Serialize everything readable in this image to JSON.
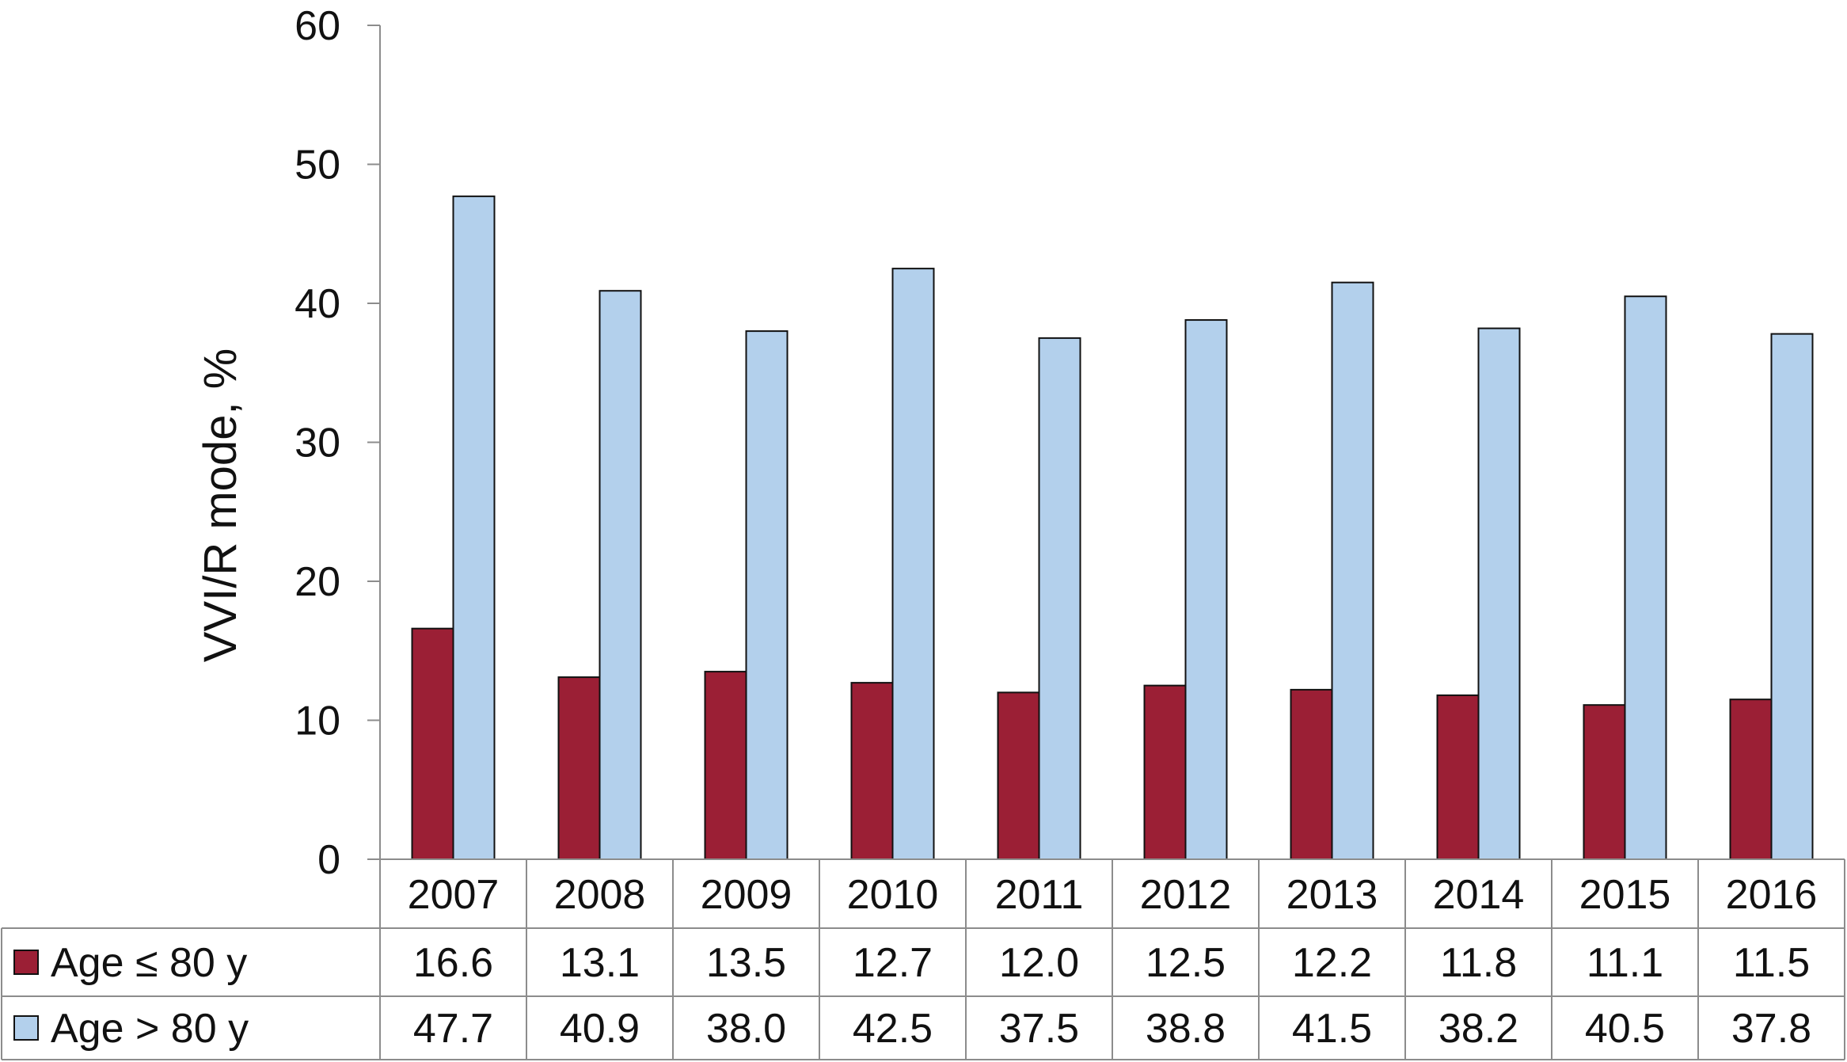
{
  "chart_data": {
    "type": "bar",
    "ylabel": "VVI/R mode, %",
    "ylim": [
      0,
      60
    ],
    "yticks": [
      0,
      10,
      20,
      30,
      40,
      50,
      60
    ],
    "categories": [
      "2007",
      "2008",
      "2009",
      "2010",
      "2011",
      "2012",
      "2013",
      "2014",
      "2015",
      "2016"
    ],
    "series": [
      {
        "name": "Age ≤ 80 y",
        "color": "#9b1f35",
        "values": [
          16.6,
          13.1,
          13.5,
          12.7,
          12.0,
          12.5,
          12.2,
          11.8,
          11.1,
          11.5
        ],
        "labels": [
          "16.6",
          "13.1",
          "13.5",
          "12.7",
          "12.0",
          "12.5",
          "12.2",
          "11.8",
          "11.1",
          "11.5"
        ]
      },
      {
        "name": "Age > 80 y",
        "color": "#b3d0ec",
        "values": [
          47.7,
          40.9,
          38.0,
          42.5,
          37.5,
          38.8,
          41.5,
          38.2,
          40.5,
          37.8
        ],
        "labels": [
          "47.7",
          "40.9",
          "38.0",
          "42.5",
          "37.5",
          "38.8",
          "41.5",
          "38.2",
          "40.5",
          "37.8"
        ]
      }
    ],
    "grid": false,
    "legend": "data table below chart"
  }
}
